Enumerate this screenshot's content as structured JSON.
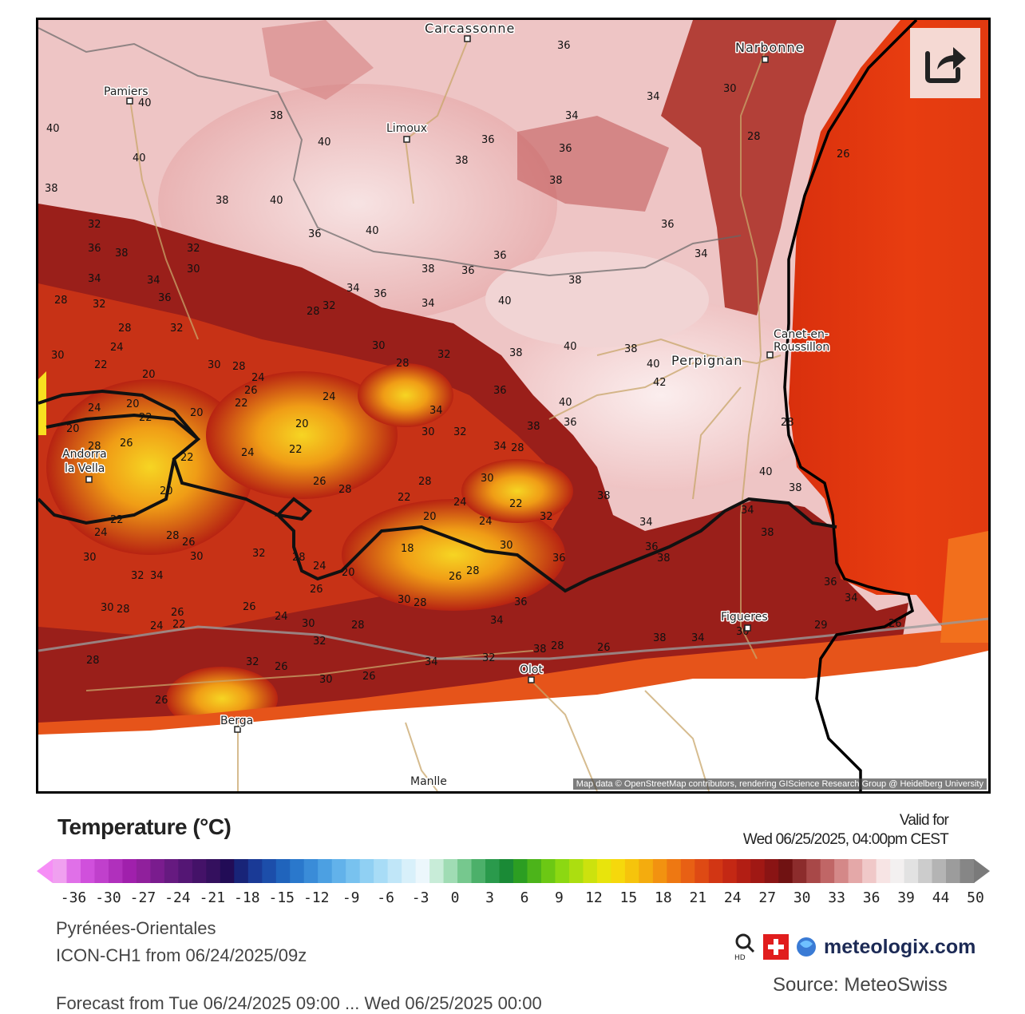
{
  "map": {
    "places": [
      "Carcassonne",
      "Narbonne",
      "Pamiers",
      "Limoux",
      "Canet-en-\nRoussillon",
      "Perpignan",
      "Andorra\nla Vella",
      "Figueres",
      "Olot",
      "Berga",
      "Manlle"
    ],
    "attribution": "Map data © OpenStreetMap contributors, rendering GIScience Research Group @ Heidelberg University",
    "sea_color": "#e53b0e",
    "share_icon": "share-icon"
  },
  "legend": {
    "title": "Temperature (°C)",
    "valid_label": "Valid for",
    "valid_time": "Wed 06/25/2025, 04:00pm CEST",
    "ticks": [
      "-36",
      "-30",
      "-27",
      "-24",
      "-21",
      "-18",
      "-15",
      "-12",
      "-9",
      "-6",
      "-3",
      "0",
      "3",
      "6",
      "9",
      "12",
      "15",
      "18",
      "21",
      "24",
      "27",
      "30",
      "33",
      "36",
      "39",
      "44",
      "50"
    ]
  },
  "footer": {
    "region": "Pyrénées-Orientales",
    "model": "ICON-CH1 from 06/24/2025/09z",
    "brand": "meteologix.com",
    "source": "Source: MeteoSwiss",
    "cut_line": "Forecast from Tue 06/24/2025 09:00 ... Wed 06/25/2025 00:00"
  }
}
